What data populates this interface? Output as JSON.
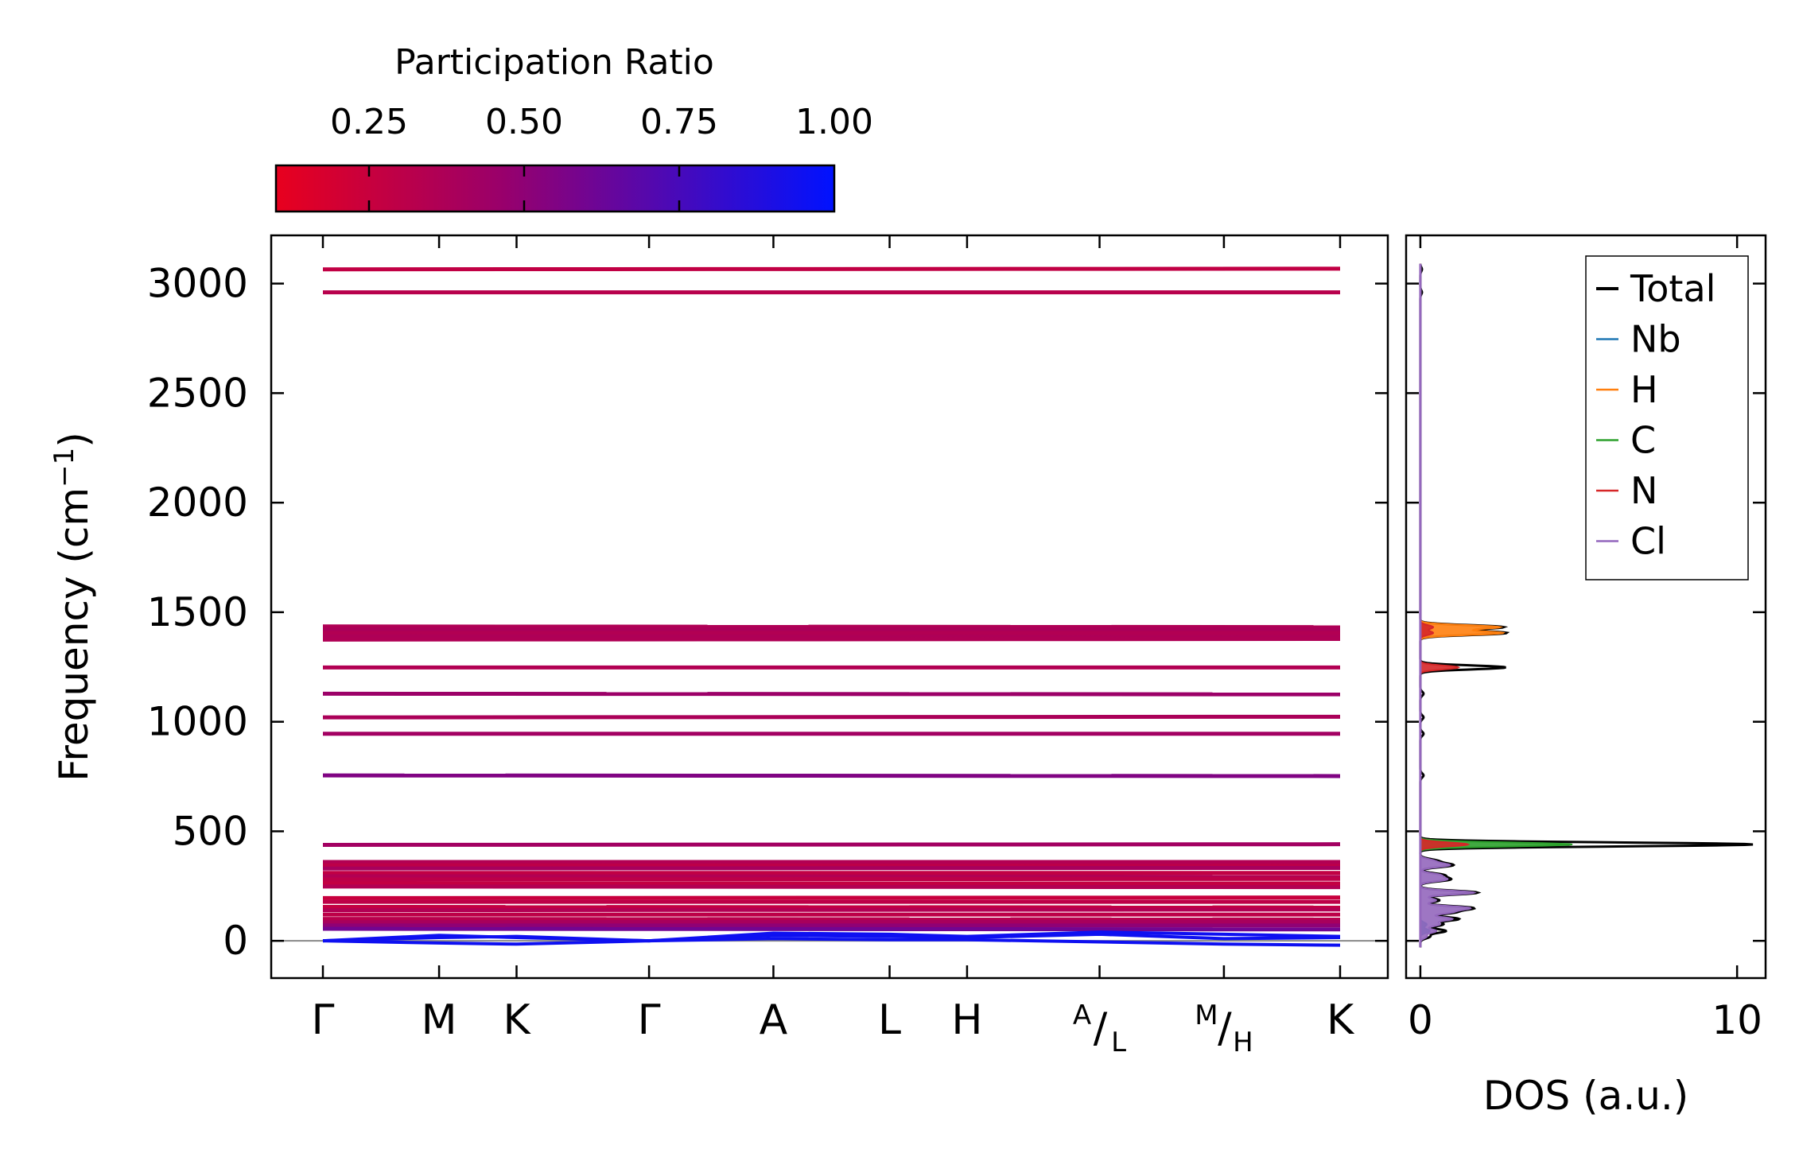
{
  "colorbar": {
    "title": "Participation Ratio",
    "ticks": [
      0.25,
      0.5,
      0.75,
      1.0
    ],
    "tick_labels": [
      "0.25",
      "0.50",
      "0.75",
      "1.00"
    ],
    "range": [
      0.1,
      1.0
    ],
    "color_low": "#e8001e",
    "color_mid": "#9a006a",
    "color_high": "#0012ff"
  },
  "chart_data": [
    {
      "type": "line",
      "name": "phonon-band-structure",
      "ylabel": "Frequency (cm⁻¹)",
      "ylabel_main": "Frequency (cm",
      "ylabel_sup": "−1",
      "ylabel_close": ")",
      "ylim": [
        -170,
        3220
      ],
      "yticks": [
        0,
        500,
        1000,
        1500,
        2000,
        2500,
        3000
      ],
      "ytick_labels": [
        "0",
        "500",
        "1000",
        "1500",
        "2000",
        "2500",
        "3000"
      ],
      "xlim": [
        0,
        9.98
      ],
      "kpoints": [
        {
          "pos": 0.0,
          "label": "Γ"
        },
        {
          "pos": 1.14,
          "label": "M"
        },
        {
          "pos": 1.9,
          "label": "K"
        },
        {
          "pos": 3.2,
          "label": "Γ"
        },
        {
          "pos": 4.42,
          "label": "A"
        },
        {
          "pos": 5.56,
          "label": "L"
        },
        {
          "pos": 6.32,
          "label": "H"
        },
        {
          "pos": 7.62,
          "label_top": "A",
          "label_bottom": "L"
        },
        {
          "pos": 8.84,
          "label_top": "M",
          "label_bottom": "H"
        },
        {
          "pos": 9.98,
          "label": "K"
        }
      ],
      "flat_bands": [
        {
          "freq": 3065,
          "pr": 0.28
        },
        {
          "freq": 2960,
          "pr": 0.32
        },
        {
          "freq": 1435,
          "pr": 0.36
        },
        {
          "freq": 1420,
          "pr": 0.38
        },
        {
          "freq": 1405,
          "pr": 0.35
        },
        {
          "freq": 1390,
          "pr": 0.37
        },
        {
          "freq": 1375,
          "pr": 0.36
        },
        {
          "freq": 1248,
          "pr": 0.35
        },
        {
          "freq": 1128,
          "pr": 0.45
        },
        {
          "freq": 1020,
          "pr": 0.38
        },
        {
          "freq": 945,
          "pr": 0.42
        },
        {
          "freq": 755,
          "pr": 0.55
        },
        {
          "freq": 438,
          "pr": 0.42
        },
        {
          "freq": 360,
          "pr": 0.35
        },
        {
          "freq": 345,
          "pr": 0.3
        },
        {
          "freq": 330,
          "pr": 0.4
        },
        {
          "freq": 310,
          "pr": 0.28
        },
        {
          "freq": 295,
          "pr": 0.35
        },
        {
          "freq": 280,
          "pr": 0.3
        },
        {
          "freq": 262,
          "pr": 0.27
        },
        {
          "freq": 248,
          "pr": 0.35
        },
        {
          "freq": 195,
          "pr": 0.25
        },
        {
          "freq": 178,
          "pr": 0.3
        },
        {
          "freq": 155,
          "pr": 0.27
        },
        {
          "freq": 140,
          "pr": 0.35
        },
        {
          "freq": 120,
          "pr": 0.3
        },
        {
          "freq": 100,
          "pr": 0.32
        },
        {
          "freq": 85,
          "pr": 0.4
        },
        {
          "freq": 70,
          "pr": 0.5
        },
        {
          "freq": 55,
          "pr": 0.6
        }
      ],
      "acoustic_bands": [
        {
          "x": [
            0,
            1.14,
            1.9,
            3.2,
            4.42,
            5.56,
            6.32,
            7.62,
            8.84,
            9.98
          ],
          "y": [
            0,
            25,
            15,
            0,
            35,
            30,
            20,
            40,
            30,
            20
          ]
        },
        {
          "x": [
            0,
            1.14,
            1.9,
            3.2,
            4.42,
            5.56,
            6.32,
            7.62,
            8.84,
            9.98
          ],
          "y": [
            0,
            15,
            20,
            0,
            25,
            20,
            15,
            30,
            10,
            15
          ]
        },
        {
          "x": [
            0,
            1.14,
            1.9,
            3.2,
            4.42,
            5.56,
            6.32,
            7.62,
            8.84,
            9.98
          ],
          "y": [
            0,
            -10,
            -15,
            0,
            10,
            5,
            5,
            -5,
            -15,
            -20
          ]
        }
      ]
    },
    {
      "type": "area",
      "name": "density-of-states",
      "xlabel": "DOS (a.u.)",
      "xlim": [
        -0.45,
        10.9
      ],
      "xticks": [
        0,
        10
      ],
      "xtick_labels": [
        "0",
        "10"
      ],
      "ylim": [
        -170,
        3220
      ],
      "legend_position": "top-right",
      "series": [
        {
          "name": "Total",
          "color": "#000000",
          "peaks": [
            [
              20,
              0.3
            ],
            [
              45,
              0.8
            ],
            [
              75,
              0.7
            ],
            [
              100,
              1.2
            ],
            [
              130,
              1.0
            ],
            [
              150,
              1.6
            ],
            [
              185,
              0.6
            ],
            [
              220,
              1.8
            ],
            [
              280,
              0.9
            ],
            [
              300,
              0.7
            ],
            [
              345,
              1.0
            ],
            [
              365,
              0.5
            ],
            [
              440,
              10.5
            ],
            [
              755,
              0.1
            ],
            [
              945,
              0.1
            ],
            [
              1020,
              0.1
            ],
            [
              1128,
              0.1
            ],
            [
              1248,
              2.7
            ],
            [
              1405,
              2.7
            ],
            [
              1432,
              2.6
            ],
            [
              2960,
              0.05
            ],
            [
              3065,
              0.05
            ]
          ]
        },
        {
          "name": "Nb",
          "color": "#1f77b4",
          "peaks": [
            [
              45,
              0.3
            ],
            [
              75,
              0.2
            ]
          ]
        },
        {
          "name": "H",
          "color": "#ff7f0e",
          "peaks": [
            [
              1405,
              2.6
            ],
            [
              1432,
              2.5
            ]
          ]
        },
        {
          "name": "C",
          "color": "#2ca02c",
          "peaks": [
            [
              440,
              4.8
            ]
          ]
        },
        {
          "name": "N",
          "color": "#d62728",
          "peaks": [
            [
              440,
              1.5
            ],
            [
              1248,
              1.2
            ],
            [
              1405,
              0.4
            ],
            [
              1432,
              0.4
            ]
          ]
        },
        {
          "name": "Cl",
          "color": "#9467bd",
          "peaks": [
            [
              20,
              0.2
            ],
            [
              45,
              0.5
            ],
            [
              75,
              0.6
            ],
            [
              100,
              1.0
            ],
            [
              130,
              0.9
            ],
            [
              150,
              1.5
            ],
            [
              185,
              0.5
            ],
            [
              220,
              1.7
            ],
            [
              280,
              0.8
            ],
            [
              300,
              0.6
            ],
            [
              345,
              0.9
            ],
            [
              365,
              0.4
            ]
          ]
        }
      ]
    }
  ]
}
